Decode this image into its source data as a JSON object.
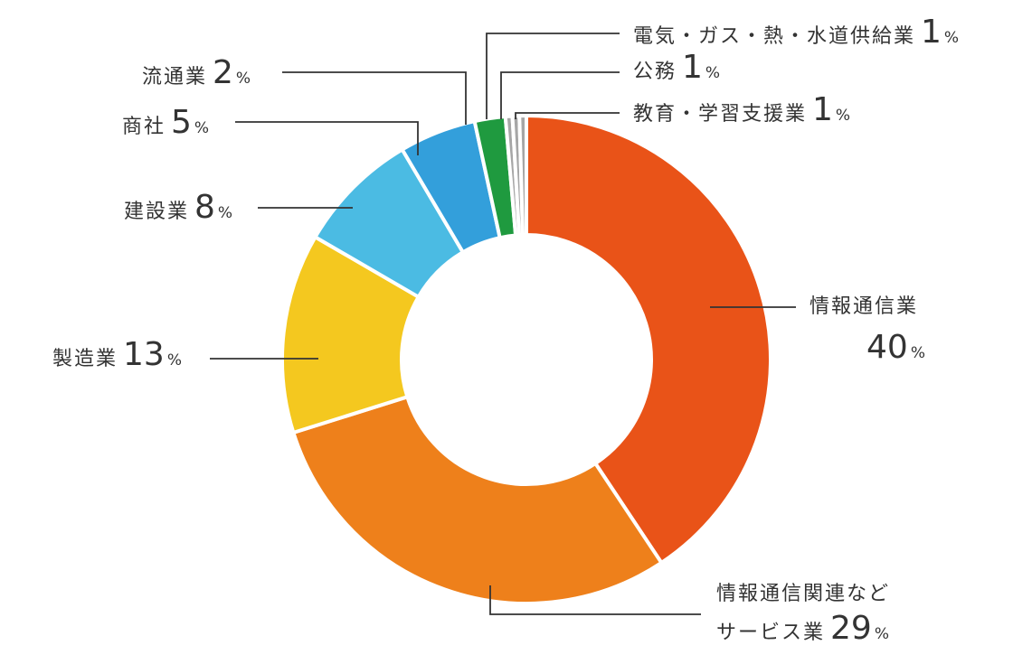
{
  "chart_data": {
    "type": "pie",
    "donut": true,
    "unit": "%",
    "slices": [
      {
        "label": "情報通信業",
        "value": 40,
        "color": "#e95318"
      },
      {
        "label_lines": [
          "情報通信関連など",
          "サービス業"
        ],
        "label": "情報通信関連などサービス業",
        "value": 29,
        "color": "#ee801b"
      },
      {
        "label": "製造業",
        "value": 13,
        "color": "#f4c81f"
      },
      {
        "label": "建設業",
        "value": 8,
        "color": "#4bbbe3"
      },
      {
        "label": "商社",
        "value": 5,
        "color": "#339fdb"
      },
      {
        "label": "流通業",
        "value": 2,
        "color": "#1f9a3f"
      },
      {
        "label": "電気・ガス・熱・水道供給業",
        "value": 1,
        "color": "#a6a6a6"
      },
      {
        "label": "公務",
        "value": 1,
        "color": "#a6a6a6"
      },
      {
        "label": "教育・学習支援業",
        "value": 1,
        "color": "#a6a6a6"
      }
    ]
  }
}
